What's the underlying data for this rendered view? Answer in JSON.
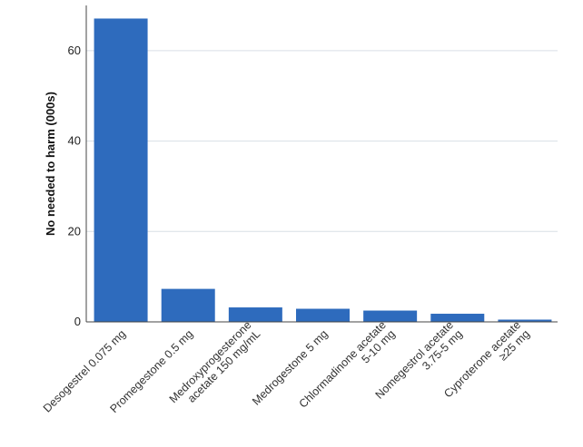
{
  "chart_data": {
    "type": "bar",
    "title": "",
    "xlabel": "",
    "ylabel": "No needed to harm (000s)",
    "ylim": [
      0,
      70
    ],
    "yticks": [
      0,
      20,
      40,
      60
    ],
    "grid": true,
    "bar_color": "#2e6bbd",
    "grid_color": "#d9dfe6",
    "axis_color": "#444444",
    "categories": [
      [
        "Desogestrel 0.075 mg"
      ],
      [
        "Promegestone 0.5 mg"
      ],
      [
        "Medroxyprogesterone",
        "acetate 150 mg/mL"
      ],
      [
        "Medrogestone 5 mg"
      ],
      [
        "Chlormadinone acetate",
        "5-10 mg"
      ],
      [
        "Nomegestrol acetate",
        "3.75-5 mg"
      ],
      [
        "Cyproterone acetate",
        "≥25 mg"
      ]
    ],
    "values": [
      67.1,
      7.3,
      3.2,
      2.9,
      2.5,
      1.8,
      0.5
    ]
  }
}
